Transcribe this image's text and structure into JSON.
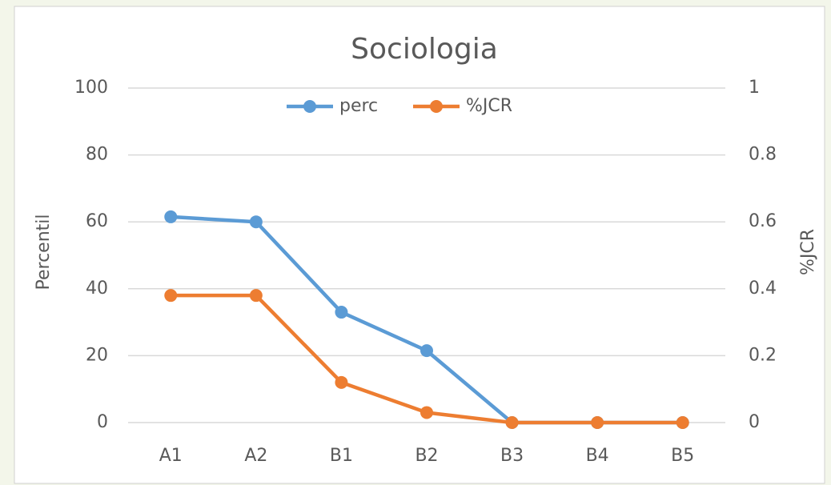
{
  "chart_data": {
    "type": "line",
    "title": "Sociologia",
    "categories": [
      "A1",
      "A2",
      "B1",
      "B2",
      "B3",
      "B4",
      "B5"
    ],
    "series": [
      {
        "name": "perc",
        "color": "#5b9bd5",
        "values": [
          61.5,
          60,
          33,
          21.5,
          0,
          0,
          0
        ]
      },
      {
        "name": "%JCR",
        "color": "#ed7d31",
        "axis": "y2",
        "values": [
          0.38,
          0.38,
          0.12,
          0.03,
          0,
          0,
          0
        ]
      }
    ],
    "y_label": "Percentil",
    "y2_label": "%JCR",
    "ylim": [
      0,
      100
    ],
    "yticks": [
      0,
      20,
      40,
      60,
      80,
      100
    ],
    "y2lim": [
      0,
      1
    ],
    "y2ticks": [
      0,
      0.2,
      0.4,
      0.6,
      0.8,
      1
    ],
    "grid": true,
    "legend": "top"
  }
}
